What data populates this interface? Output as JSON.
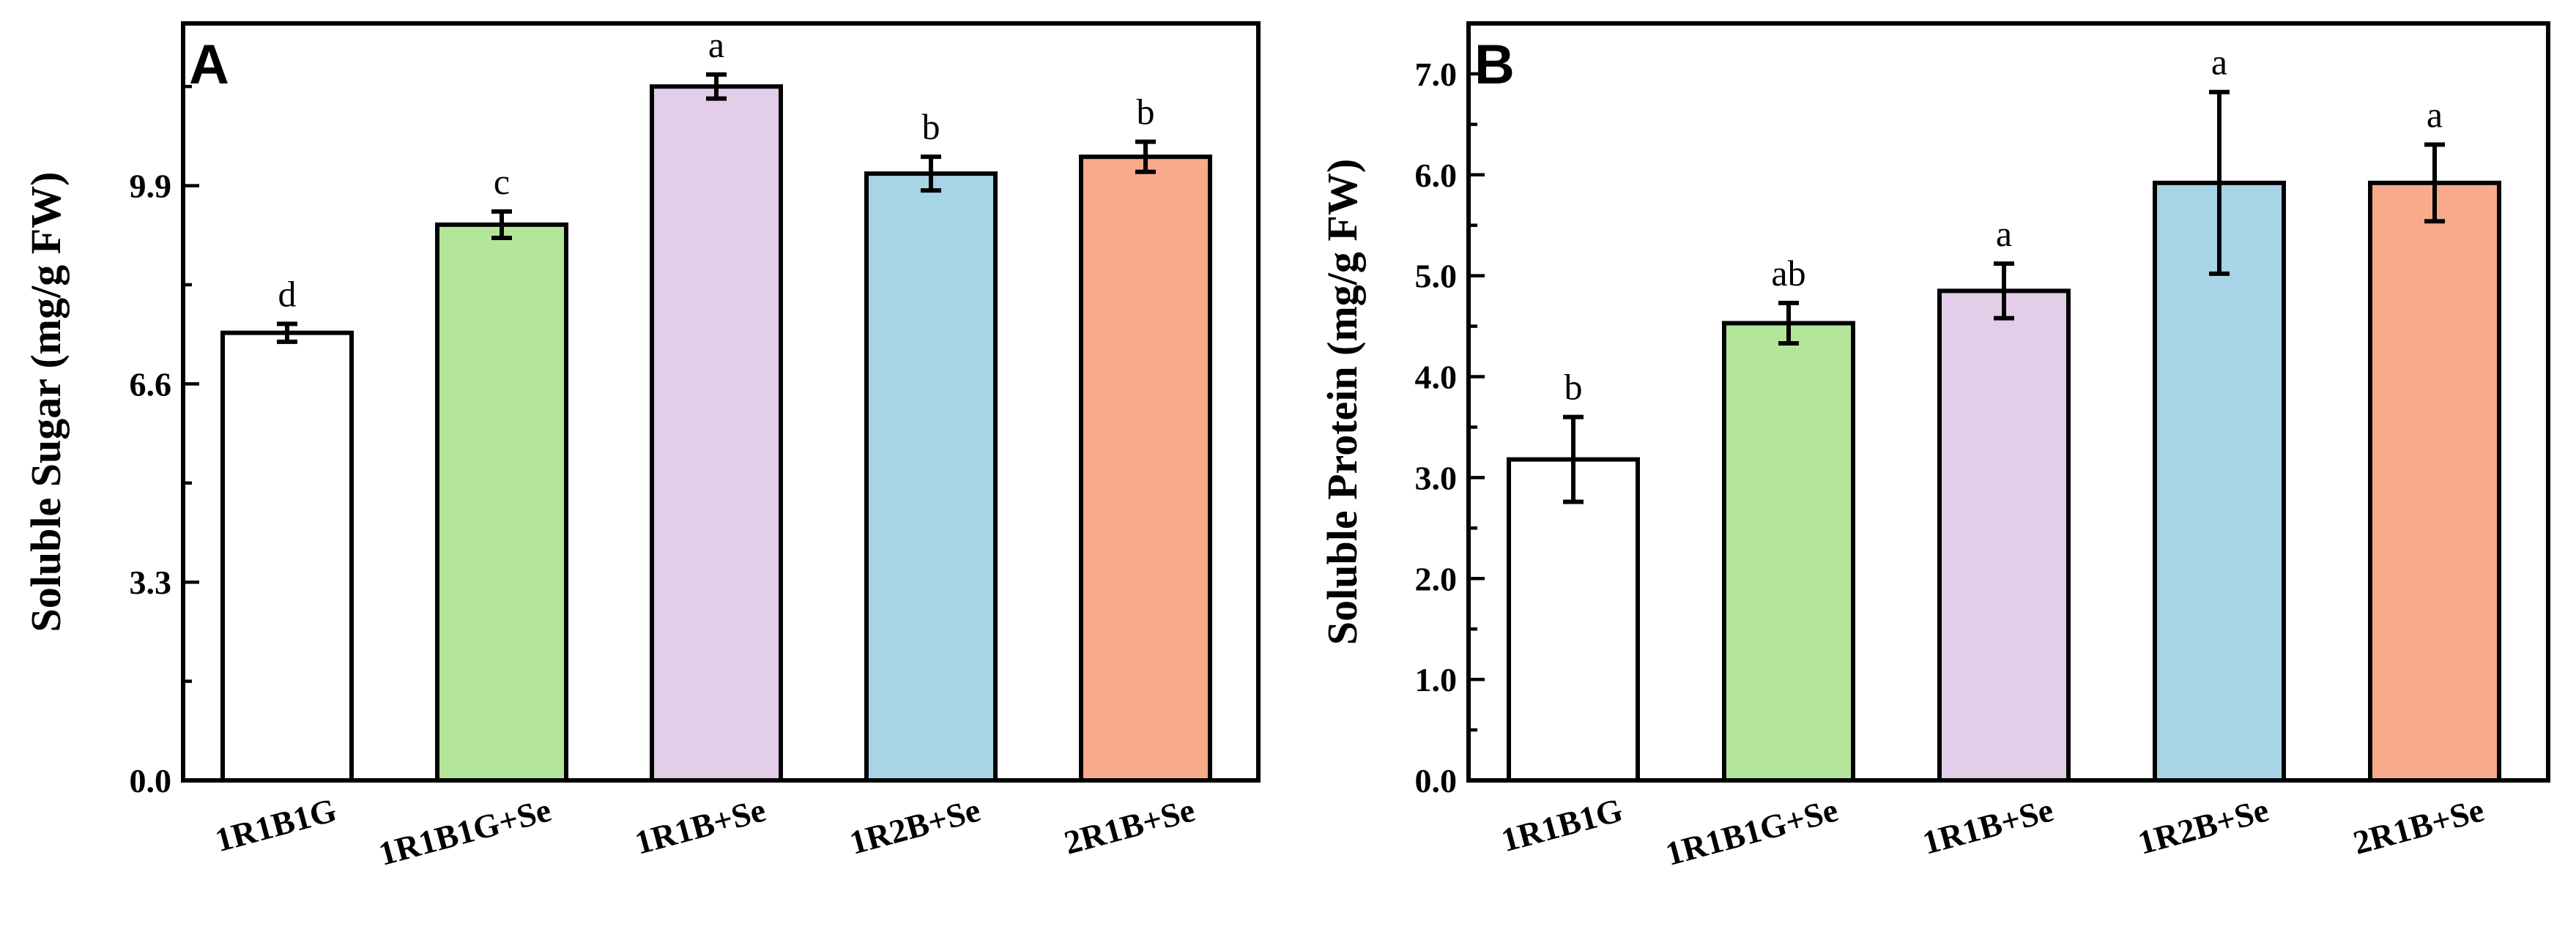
{
  "chart_data": [
    {
      "type": "bar",
      "panel": "A",
      "ylabel": "Soluble Sugar (mg/g FW)",
      "xlabel": "",
      "ylim": [
        0,
        12.6
      ],
      "yticks": [
        0.0,
        3.3,
        6.6,
        9.9
      ],
      "ytick_labels": [
        "0.0",
        "3.3",
        "6.6",
        "9.9"
      ],
      "categories": [
        "1R1B1G",
        "1R1B1G+Se",
        "1R1B+Se",
        "1R2B+Se",
        "2R1B+Se"
      ],
      "values": [
        7.45,
        9.25,
        11.55,
        10.1,
        10.38
      ],
      "errors": [
        0.15,
        0.22,
        0.2,
        0.28,
        0.25
      ],
      "significance": [
        "d",
        "c",
        "a",
        "b",
        "b"
      ],
      "colors": [
        "#ffffff",
        "#b3e699",
        "#e3cde8",
        "#a8d5e6",
        "#f9aa8b"
      ]
    },
    {
      "type": "bar",
      "panel": "B",
      "ylabel": "Soluble Protein (mg/g FW)",
      "xlabel": "",
      "ylim": [
        0,
        7.5
      ],
      "yticks": [
        0.0,
        1.0,
        2.0,
        3.0,
        4.0,
        5.0,
        6.0,
        7.0
      ],
      "ytick_labels": [
        "0.0",
        "1.0",
        "2.0",
        "3.0",
        "4.0",
        "5.0",
        "6.0",
        "7.0"
      ],
      "categories": [
        "1R1B1G",
        "1R1B1G+Se",
        "1R1B+Se",
        "1R2B+Se",
        "2R1B+Se"
      ],
      "values": [
        3.18,
        4.53,
        4.85,
        5.92,
        5.92
      ],
      "errors": [
        0.42,
        0.2,
        0.27,
        0.9,
        0.38
      ],
      "significance": [
        "b",
        "ab",
        "a",
        "a",
        "a"
      ],
      "colors": [
        "#ffffff",
        "#b3e699",
        "#e3cde8",
        "#a8d5e6",
        "#f9aa8b"
      ]
    }
  ]
}
